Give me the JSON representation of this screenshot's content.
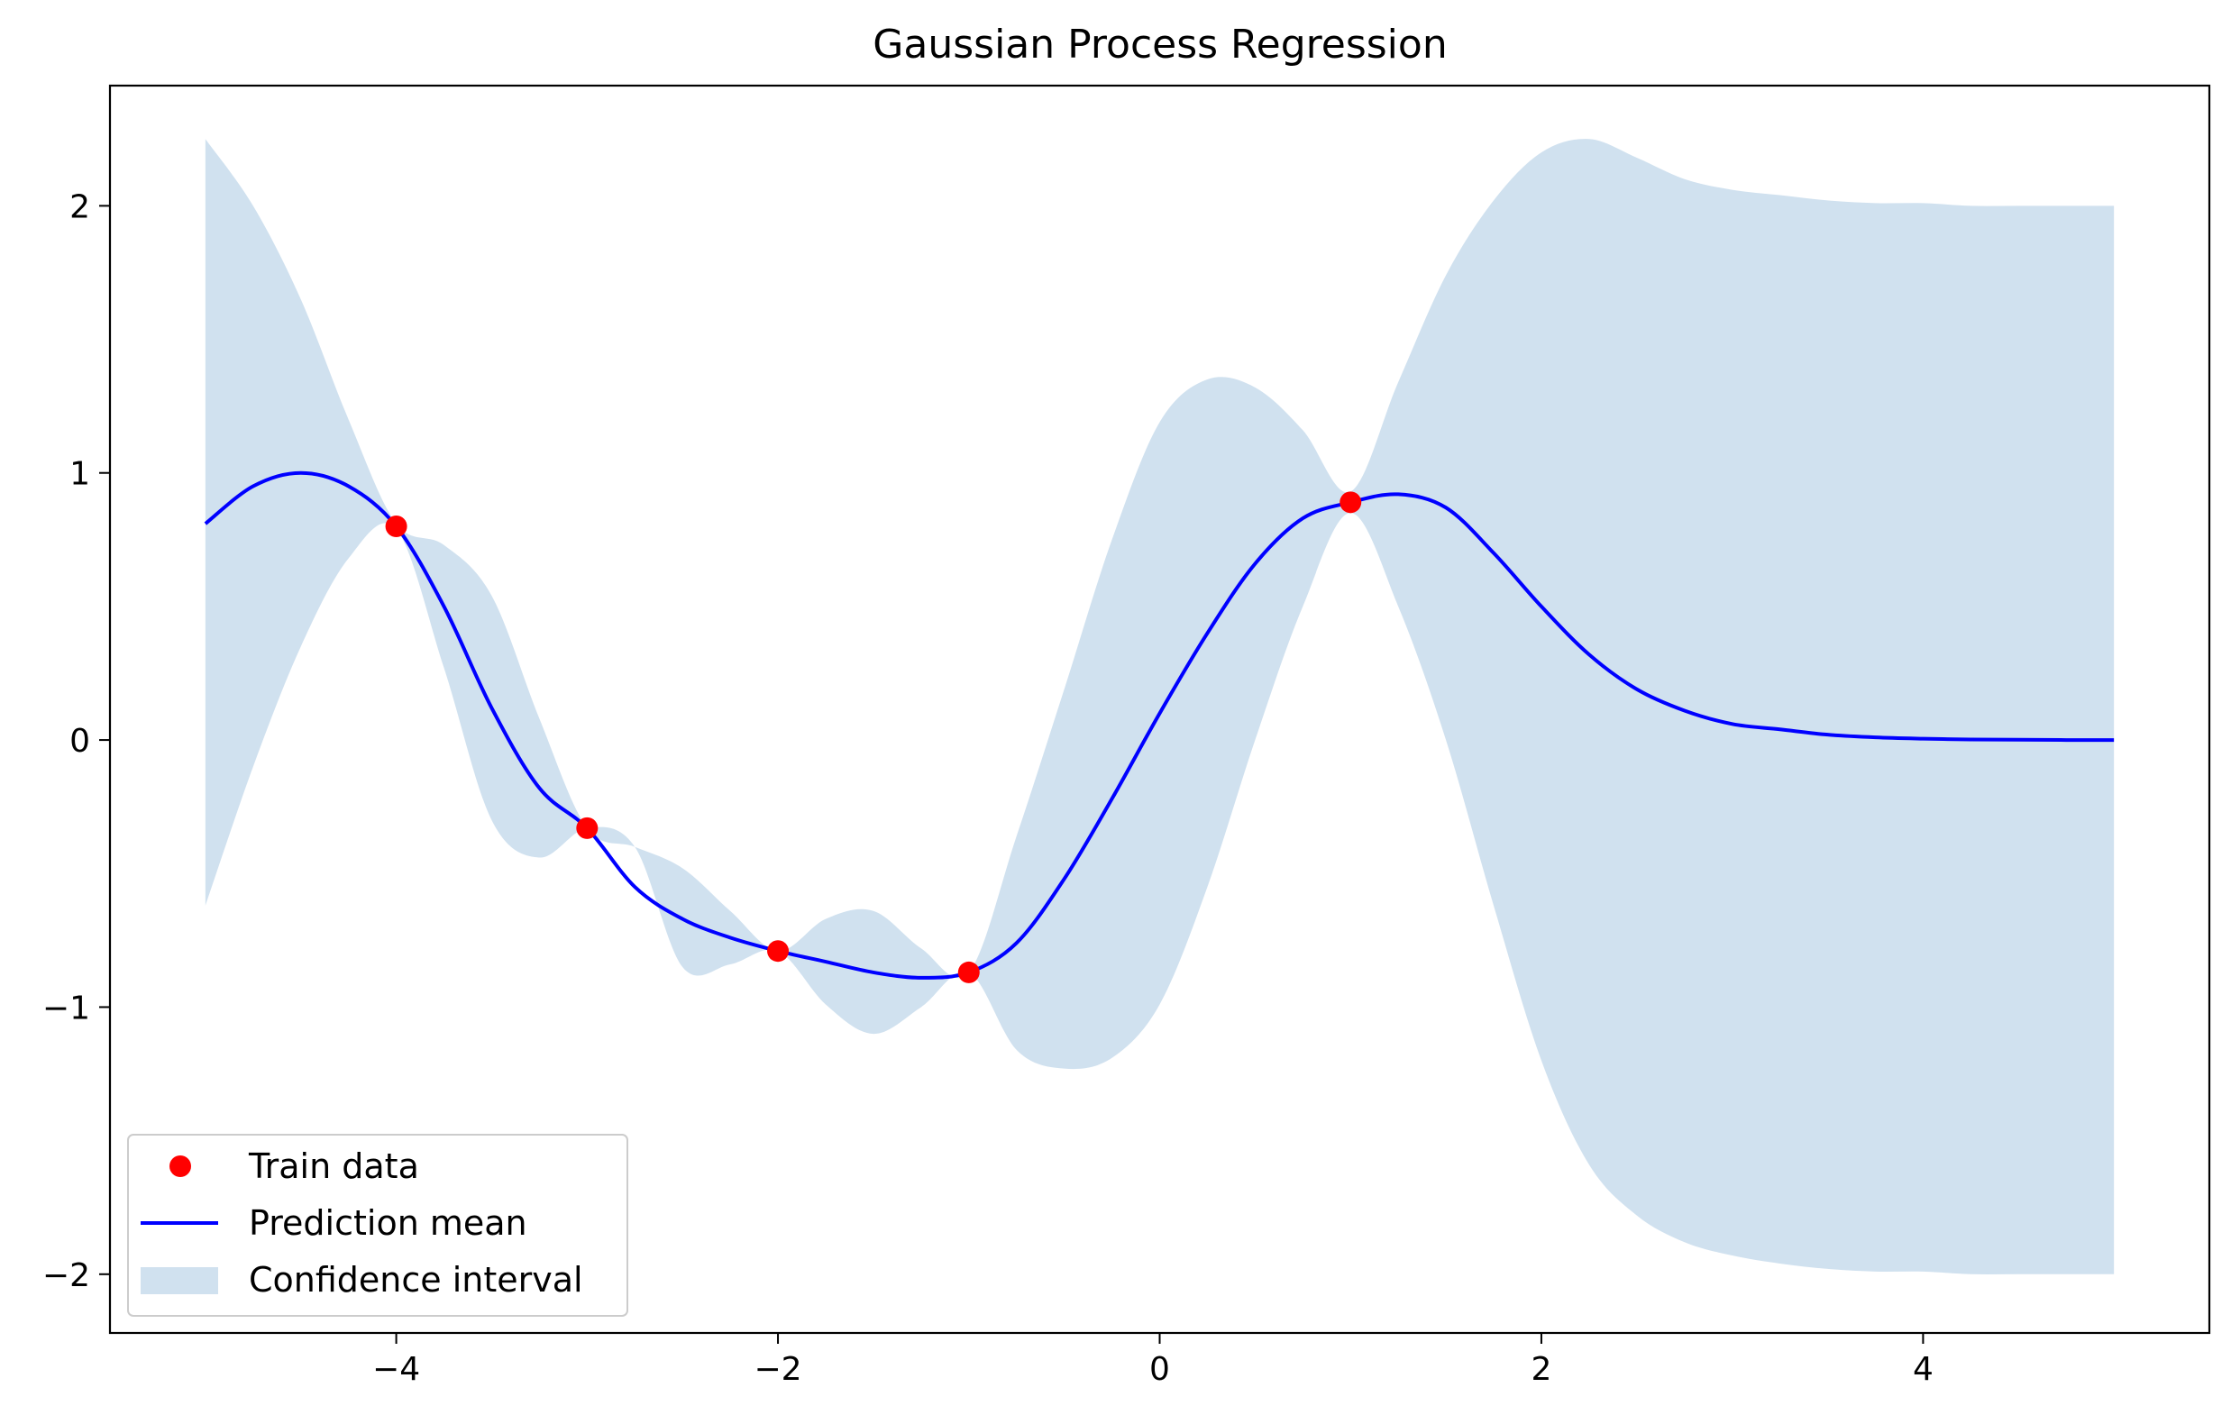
{
  "chart_data": {
    "type": "line",
    "title": "Gaussian Process Regression",
    "xlabel": "",
    "ylabel": "",
    "xlim": [
      -5.5,
      5.5
    ],
    "ylim": [
      -2.22,
      2.45
    ],
    "x_ticks": [
      -4,
      -2,
      0,
      2,
      4
    ],
    "x_tick_labels": [
      "−4",
      "−2",
      "0",
      "2",
      "4"
    ],
    "y_ticks": [
      -2,
      -1,
      0,
      1,
      2
    ],
    "y_tick_labels": [
      "−2",
      "−1",
      "0",
      "1",
      "2"
    ],
    "grid": false,
    "legend_position": "lower-left",
    "train_data": {
      "name": "Train data",
      "color": "#ff0000",
      "x": [
        -4,
        -3,
        -2,
        -1,
        1
      ],
      "y": [
        0.8,
        -0.33,
        -0.79,
        -0.87,
        0.89
      ]
    },
    "prediction_mean": {
      "name": "Prediction mean",
      "color": "#0000ff",
      "x": [
        -5.0,
        -4.75,
        -4.5,
        -4.25,
        -4.0,
        -3.75,
        -3.5,
        -3.25,
        -3.0,
        -2.75,
        -2.5,
        -2.25,
        -2.0,
        -1.75,
        -1.5,
        -1.25,
        -1.0,
        -0.75,
        -0.5,
        -0.25,
        0.0,
        0.25,
        0.5,
        0.75,
        1.0,
        1.25,
        1.5,
        1.75,
        2.0,
        2.25,
        2.5,
        2.75,
        3.0,
        3.25,
        3.5,
        3.75,
        4.0,
        4.25,
        4.5,
        4.75,
        5.0
      ],
      "y": [
        0.81,
        0.95,
        1.0,
        0.95,
        0.8,
        0.5,
        0.12,
        -0.18,
        -0.33,
        -0.55,
        -0.67,
        -0.74,
        -0.79,
        -0.83,
        -0.87,
        -0.89,
        -0.87,
        -0.76,
        -0.52,
        -0.22,
        0.1,
        0.4,
        0.66,
        0.83,
        0.89,
        0.92,
        0.87,
        0.7,
        0.5,
        0.32,
        0.19,
        0.11,
        0.06,
        0.04,
        0.02,
        0.01,
        0.005,
        0.002,
        0.001,
        0.0,
        0.0
      ]
    },
    "confidence_interval": {
      "name": "Confidence interval",
      "color": "#a9c9e2",
      "opacity": 0.55,
      "x": [
        -5.0,
        -4.75,
        -4.5,
        -4.25,
        -4.0,
        -3.75,
        -3.5,
        -3.25,
        -3.0,
        -2.75,
        -2.5,
        -2.25,
        -2.0,
        -1.75,
        -1.5,
        -1.25,
        -1.0,
        -0.75,
        -0.5,
        -0.25,
        0.0,
        0.25,
        0.5,
        0.75,
        1.0,
        1.25,
        1.5,
        1.75,
        2.0,
        2.25,
        2.5,
        2.75,
        3.0,
        3.25,
        3.5,
        3.75,
        4.0,
        4.25,
        4.5,
        4.75,
        5.0
      ],
      "lower": [
        -0.62,
        -0.1,
        0.35,
        0.68,
        0.79,
        0.27,
        -0.3,
        -0.44,
        -0.33,
        -0.4,
        -0.85,
        -0.84,
        -0.79,
        -0.99,
        -1.1,
        -1.0,
        -0.87,
        -1.16,
        -1.23,
        -1.19,
        -0.99,
        -0.55,
        0.0,
        0.5,
        0.85,
        0.5,
        0.0,
        -0.62,
        -1.2,
        -1.59,
        -1.78,
        -1.88,
        -1.93,
        -1.96,
        -1.98,
        -1.99,
        -1.99,
        -2.0,
        -2.0,
        -2.0,
        -2.0
      ],
      "upper": [
        2.25,
        2.0,
        1.65,
        1.2,
        0.81,
        0.73,
        0.54,
        0.08,
        -0.33,
        -0.4,
        -0.48,
        -0.64,
        -0.79,
        -0.67,
        -0.64,
        -0.78,
        -0.87,
        -0.36,
        0.19,
        0.75,
        1.19,
        1.35,
        1.32,
        1.16,
        0.93,
        1.34,
        1.74,
        2.02,
        2.2,
        2.25,
        2.18,
        2.1,
        2.06,
        2.04,
        2.02,
        2.01,
        2.01,
        2.0,
        2.0,
        2.0,
        2.0
      ]
    }
  }
}
